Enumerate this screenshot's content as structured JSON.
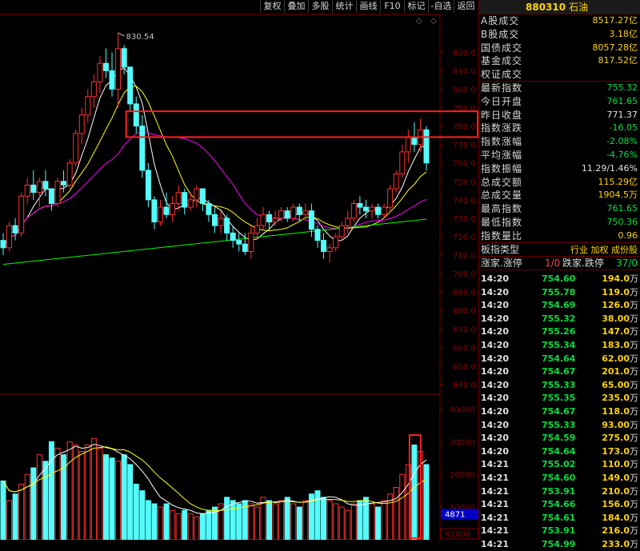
{
  "toolbar": {
    "buttons": [
      "复权",
      "叠加",
      "多股",
      "统计",
      "画线",
      "F10",
      "标记",
      "-自选",
      "返回"
    ]
  },
  "panel": {
    "code": "880310",
    "name": "石油",
    "stats": [
      {
        "label": "A股成交",
        "value": "8517.27亿",
        "color": "yellow"
      },
      {
        "label": "B股成交",
        "value": "3.18亿",
        "color": "yellow"
      },
      {
        "label": "国债成交",
        "value": "8057.28亿",
        "color": "yellow"
      },
      {
        "label": "基金成交",
        "value": "817.52亿",
        "color": "yellow"
      },
      {
        "label": "权证成交",
        "value": "",
        "color": "yellow"
      },
      {
        "label": "最新指数",
        "value": "755.32",
        "color": "green"
      },
      {
        "label": "今日开盘",
        "value": "761.65",
        "color": "green"
      },
      {
        "label": "昨日收盘",
        "value": "771.37",
        "color": "white"
      },
      {
        "label": "指数涨跌",
        "value": "-16.05",
        "color": "green"
      },
      {
        "label": "指数涨幅",
        "value": "-2.08%",
        "color": "green"
      },
      {
        "label": "平均涨幅",
        "value": "-4.76%",
        "color": "green"
      },
      {
        "label": "指数振幅",
        "value": "11.29/1.46%",
        "color": "white"
      },
      {
        "label": "总成交额",
        "value": "115.29亿",
        "color": "yellow"
      },
      {
        "label": "总成交量",
        "value": "1904.5万",
        "color": "yellow"
      },
      {
        "label": "最高指数",
        "value": "761.65",
        "color": "green"
      },
      {
        "label": "最低指数",
        "value": "750.36",
        "color": "green"
      },
      {
        "label": "指数量比",
        "value": "0.96",
        "color": "yellow"
      }
    ],
    "board_type_label": "板指类型",
    "board_type_value": "行业 加权 成份股",
    "up_label": "涨家.涨停",
    "up_value": "1/0",
    "down_label": "跌家.跌停",
    "down_value": "37/0",
    "trades": [
      {
        "time": "14:20",
        "price": "754.60",
        "vol": "194.0",
        "unit": "万"
      },
      {
        "time": "14:20",
        "price": "755.78",
        "vol": "119.0",
        "unit": "万"
      },
      {
        "time": "14:20",
        "price": "754.69",
        "vol": "126.0",
        "unit": "万"
      },
      {
        "time": "14:20",
        "price": "755.32",
        "vol": "38.00",
        "unit": "万"
      },
      {
        "time": "14:20",
        "price": "755.26",
        "vol": "147.0",
        "unit": "万"
      },
      {
        "time": "14:20",
        "price": "755.34",
        "vol": "183.0",
        "unit": "万"
      },
      {
        "time": "14:20",
        "price": "754.64",
        "vol": "62.00",
        "unit": "万"
      },
      {
        "time": "14:20",
        "price": "754.67",
        "vol": "201.0",
        "unit": "万"
      },
      {
        "time": "14:20",
        "price": "755.33",
        "vol": "65.00",
        "unit": "万"
      },
      {
        "time": "14:20",
        "price": "755.35",
        "vol": "235.0",
        "unit": "万"
      },
      {
        "time": "14:20",
        "price": "754.67",
        "vol": "118.0",
        "unit": "万"
      },
      {
        "time": "14:20",
        "price": "755.33",
        "vol": "93.00",
        "unit": "万"
      },
      {
        "time": "14:20",
        "price": "754.59",
        "vol": "275.0",
        "unit": "万"
      },
      {
        "time": "14:20",
        "price": "754.64",
        "vol": "173.0",
        "unit": "万"
      },
      {
        "time": "14:21",
        "price": "755.02",
        "vol": "110.0",
        "unit": "万"
      },
      {
        "time": "14:21",
        "price": "754.60",
        "vol": "149.0",
        "unit": "万"
      },
      {
        "time": "14:21",
        "price": "753.91",
        "vol": "210.0",
        "unit": "万"
      },
      {
        "time": "14:21",
        "price": "754.66",
        "vol": "156.0",
        "unit": "万"
      },
      {
        "time": "14:21",
        "price": "754.61",
        "vol": "184.0",
        "unit": "万"
      },
      {
        "time": "14:21",
        "price": "753.91",
        "vol": "216.0",
        "unit": "万"
      },
      {
        "time": "14:21",
        "price": "754.99",
        "vol": "233.0",
        "unit": "万"
      }
    ]
  },
  "chart": {
    "peak_label": "830.54",
    "price_axis": [
      "820.0",
      "810.0",
      "800.0",
      "790.0",
      "780.0",
      "770.0",
      "760.0",
      "750.0",
      "740.0",
      "730.0",
      "720.0",
      "710.0",
      "700.0",
      "690.0",
      "680.0",
      "670.0",
      "660.0",
      "650.0",
      "640.0"
    ],
    "volume_axis": [
      "40000",
      "30000",
      "20000",
      "10000"
    ],
    "volume_current": "4871",
    "volume_unit": "X1000",
    "colors": {
      "up": "#ff3030",
      "down": "#54fcfc",
      "ma5": "#ffffff",
      "ma10": "#ffff00",
      "ma20": "#ff00ff",
      "ma60": "#00ff00",
      "highlight": "#ff2020"
    }
  },
  "chart_data": {
    "type": "candlestick",
    "ohlc": [
      [
        718,
        722,
        710,
        714
      ],
      [
        714,
        728,
        712,
        726
      ],
      [
        726,
        730,
        718,
        722
      ],
      [
        722,
        744,
        720,
        742
      ],
      [
        742,
        752,
        738,
        748
      ],
      [
        748,
        756,
        740,
        744
      ],
      [
        744,
        752,
        736,
        750
      ],
      [
        750,
        756,
        742,
        746
      ],
      [
        746,
        746,
        734,
        738
      ],
      [
        738,
        752,
        736,
        750
      ],
      [
        750,
        756,
        744,
        748
      ],
      [
        748,
        762,
        746,
        760
      ],
      [
        760,
        778,
        758,
        776
      ],
      [
        776,
        790,
        770,
        786
      ],
      [
        786,
        800,
        782,
        796
      ],
      [
        796,
        808,
        790,
        804
      ],
      [
        804,
        818,
        798,
        814
      ],
      [
        814,
        822,
        806,
        810
      ],
      [
        810,
        820,
        796,
        800
      ],
      [
        800,
        830.54,
        790,
        822
      ],
      [
        822,
        824,
        808,
        812
      ],
      [
        812,
        812,
        788,
        792
      ],
      [
        792,
        796,
        776,
        780
      ],
      [
        780,
        786,
        752,
        756
      ],
      [
        756,
        760,
        736,
        740
      ],
      [
        740,
        742,
        724,
        728
      ],
      [
        728,
        740,
        726,
        736
      ],
      [
        736,
        744,
        730,
        732
      ],
      [
        732,
        742,
        728,
        738
      ],
      [
        738,
        748,
        734,
        744
      ],
      [
        744,
        746,
        732,
        736
      ],
      [
        736,
        744,
        734,
        740
      ],
      [
        740,
        748,
        736,
        746
      ],
      [
        746,
        746,
        734,
        738
      ],
      [
        738,
        740,
        728,
        732
      ],
      [
        732,
        736,
        722,
        726
      ],
      [
        726,
        734,
        722,
        730
      ],
      [
        730,
        732,
        718,
        722
      ],
      [
        722,
        726,
        714,
        718
      ],
      [
        718,
        722,
        712,
        716
      ],
      [
        716,
        722,
        710,
        712
      ],
      [
        712,
        726,
        708,
        722
      ],
      [
        722,
        730,
        718,
        726
      ],
      [
        726,
        736,
        724,
        732
      ],
      [
        732,
        734,
        724,
        728
      ],
      [
        728,
        734,
        726,
        730
      ],
      [
        730,
        736,
        728,
        734
      ],
      [
        734,
        736,
        728,
        730
      ],
      [
        730,
        738,
        728,
        736
      ],
      [
        736,
        738,
        728,
        732
      ],
      [
        732,
        738,
        730,
        734
      ],
      [
        734,
        738,
        720,
        724
      ],
      [
        724,
        726,
        714,
        718
      ],
      [
        718,
        722,
        708,
        712
      ],
      [
        712,
        716,
        706,
        714
      ],
      [
        714,
        722,
        712,
        720
      ],
      [
        720,
        728,
        718,
        726
      ],
      [
        726,
        734,
        722,
        730
      ],
      [
        730,
        740,
        728,
        738
      ],
      [
        738,
        742,
        732,
        736
      ],
      [
        736,
        740,
        730,
        734
      ],
      [
        734,
        738,
        730,
        736
      ],
      [
        736,
        738,
        730,
        732
      ],
      [
        732,
        738,
        730,
        736
      ],
      [
        736,
        748,
        734,
        746
      ],
      [
        746,
        756,
        744,
        754
      ],
      [
        754,
        770,
        752,
        766
      ],
      [
        766,
        778,
        760,
        774
      ],
      [
        774,
        782,
        766,
        770
      ],
      [
        770,
        784,
        766,
        778
      ],
      [
        778,
        780,
        756,
        760
      ]
    ],
    "volume": [
      18000,
      12000,
      14000,
      17000,
      20000,
      22000,
      26000,
      24000,
      30000,
      28000,
      26000,
      30000,
      29000,
      27000,
      29000,
      31000,
      28000,
      26000,
      25000,
      24000,
      26000,
      23000,
      17000,
      15000,
      12000,
      11000,
      10000,
      11000,
      9000,
      8000,
      9000,
      8000,
      7000,
      8000,
      9000,
      10000,
      11000,
      13000,
      12000,
      11000,
      12000,
      11000,
      10000,
      13000,
      12000,
      11000,
      12000,
      13000,
      11000,
      10000,
      12000,
      14000,
      15000,
      13000,
      12000,
      11000,
      10000,
      9000,
      11000,
      12000,
      13000,
      11000,
      10000,
      12000,
      14000,
      16000,
      20000,
      23000,
      29000,
      27000,
      23000
    ],
    "price_range": [
      635,
      831
    ],
    "volume_range": [
      0,
      44000
    ],
    "highlight_price": [
      774,
      788
    ]
  }
}
